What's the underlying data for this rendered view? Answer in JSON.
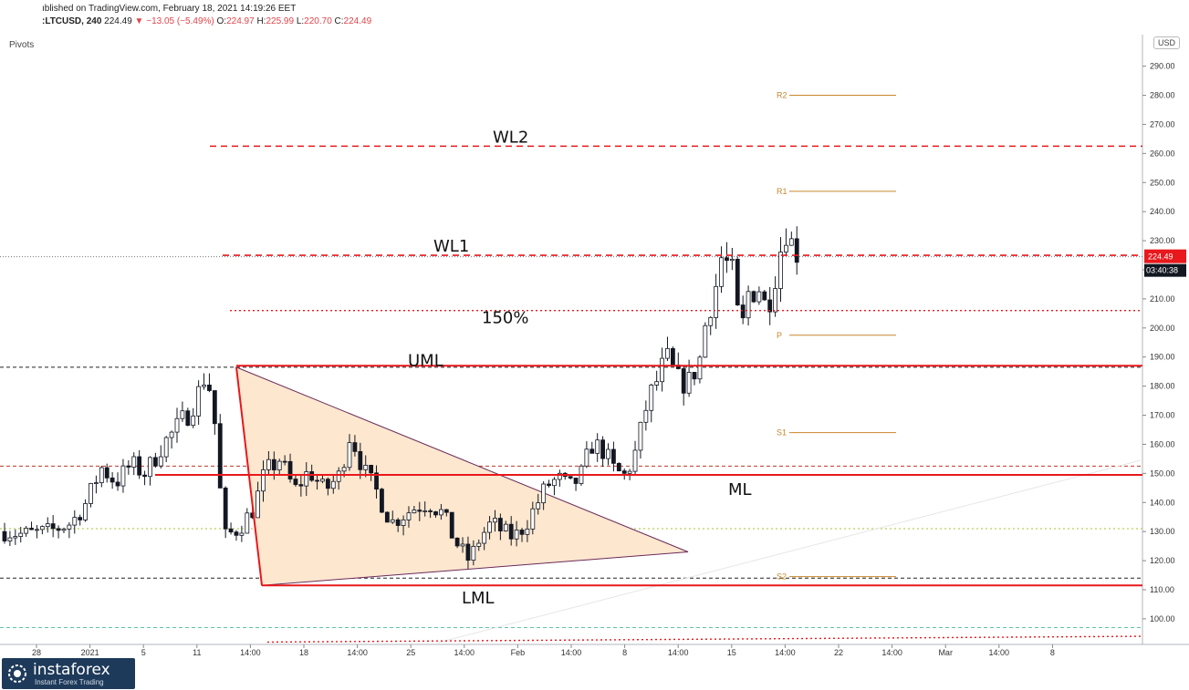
{
  "header": {
    "published": "ıblished on TradingView.com, February 18, 2021 14:19:26 EET",
    "symbol": ":LTCUSD, 240",
    "price": "224.49",
    "change": "−13.05 (−5.49%)",
    "open_label": "O:",
    "open": "224.97",
    "high_label": "H:",
    "high": "225.99",
    "low_label": "L:",
    "low": "220.70",
    "close_label": "C:",
    "close": "224.49"
  },
  "indicator_label": "Pivots",
  "currency_button": "USD",
  "price_tag": {
    "price": "224.49",
    "countdown": "03:40:38"
  },
  "logo": {
    "name": "instaforex",
    "tagline": "Instant Forex Trading"
  },
  "colors": {
    "up_candle": "#131722",
    "down_candle": "#131722",
    "median_lines": "#e8181c",
    "pivot_lines": "#c8872b",
    "triangle_fill": "#fde7cf",
    "triangle_edge": "#6a2a5a",
    "price_tag": "#e8181c"
  },
  "chart_data": {
    "type": "candlestick",
    "y_axis": {
      "range": [
        87,
        295
      ],
      "ticks": [
        "90.00",
        "100.00",
        "110.00",
        "120.00",
        "130.00",
        "140.00",
        "150.00",
        "160.00",
        "170.00",
        "180.00",
        "190.00",
        "200.00",
        "210.00",
        "220.00",
        "230.00",
        "240.00",
        "250.00",
        "260.00",
        "270.00",
        "280.00",
        "290.00"
      ]
    },
    "x_axis": {
      "ticks": [
        "28",
        "2021",
        "5",
        "11",
        "14:00",
        "18",
        "14:00",
        "25",
        "14:00",
        "Feb",
        "14:00",
        "8",
        "14:00",
        "15",
        "14:00",
        "22",
        "14:00",
        "Mar",
        "14:00",
        "8"
      ]
    },
    "annotations": [
      {
        "label": "WL2",
        "price": 262.5,
        "style": "dashed"
      },
      {
        "label": "WL1",
        "price": 225.0,
        "style": "dashed"
      },
      {
        "label": "150%",
        "price": 206.0,
        "style": "dotted"
      },
      {
        "label": "UML",
        "price": 187.0,
        "style": "solid"
      },
      {
        "label": "ML",
        "price": 149.5,
        "style": "solid"
      },
      {
        "label": "LML",
        "price": 111.5,
        "style": "solid"
      }
    ],
    "pivots": [
      {
        "label": "R2",
        "price": 280.0
      },
      {
        "label": "R1",
        "price": 247.0
      },
      {
        "label": "P",
        "price": 197.5
      },
      {
        "label": "S1",
        "price": 164.0
      },
      {
        "label": "S2",
        "price": 114.5
      }
    ],
    "horizontal_levels": [
      {
        "price": 186.5,
        "style": "dashed-black"
      },
      {
        "price": 152.5,
        "style": "dashed-red"
      },
      {
        "price": 131.0,
        "style": "dotted-yellowgreen"
      },
      {
        "price": 114.0,
        "style": "dashed-black"
      },
      {
        "price": 97.0,
        "style": "dashed-teal"
      },
      {
        "price": 224.49,
        "style": "dotted-gray"
      }
    ],
    "close_path": [
      [
        0,
        130
      ],
      [
        5,
        129
      ],
      [
        12,
        130
      ],
      [
        18,
        133
      ],
      [
        22,
        140
      ],
      [
        26,
        152
      ],
      [
        30,
        147
      ],
      [
        34,
        153
      ],
      [
        38,
        150
      ],
      [
        42,
        159
      ],
      [
        46,
        165
      ],
      [
        49,
        170
      ],
      [
        52,
        177
      ],
      [
        54,
        184
      ],
      [
        56,
        176
      ],
      [
        59,
        128
      ],
      [
        63,
        131
      ],
      [
        67,
        138
      ],
      [
        70,
        150
      ],
      [
        74,
        155
      ],
      [
        78,
        144
      ],
      [
        82,
        151
      ],
      [
        86,
        144
      ],
      [
        90,
        149
      ],
      [
        93,
        164
      ],
      [
        97,
        150
      ],
      [
        100,
        144
      ],
      [
        104,
        133
      ],
      [
        110,
        138
      ],
      [
        114,
        140
      ],
      [
        118,
        136
      ],
      [
        121,
        127
      ],
      [
        125,
        120
      ],
      [
        128,
        128
      ],
      [
        131,
        133
      ],
      [
        134,
        130
      ],
      [
        137,
        128
      ],
      [
        140,
        132
      ],
      [
        143,
        139
      ],
      [
        146,
        146
      ],
      [
        149,
        148
      ],
      [
        152,
        145
      ],
      [
        155,
        149
      ],
      [
        158,
        160
      ],
      [
        161,
        158
      ],
      [
        164,
        151
      ],
      [
        167,
        149
      ],
      [
        170,
        158
      ],
      [
        173,
        175
      ],
      [
        176,
        183
      ],
      [
        178,
        190
      ],
      [
        181,
        182
      ],
      [
        184,
        181
      ],
      [
        187,
        189
      ],
      [
        189,
        205
      ],
      [
        191,
        212
      ],
      [
        193,
        225
      ],
      [
        196,
        218
      ],
      [
        198,
        196
      ],
      [
        200,
        212
      ],
      [
        203,
        214
      ],
      [
        205,
        206
      ],
      [
        208,
        222
      ],
      [
        210,
        235
      ],
      [
        212,
        228
      ],
      [
        214,
        225
      ]
    ],
    "x_domain": [
      0,
      300
    ]
  }
}
